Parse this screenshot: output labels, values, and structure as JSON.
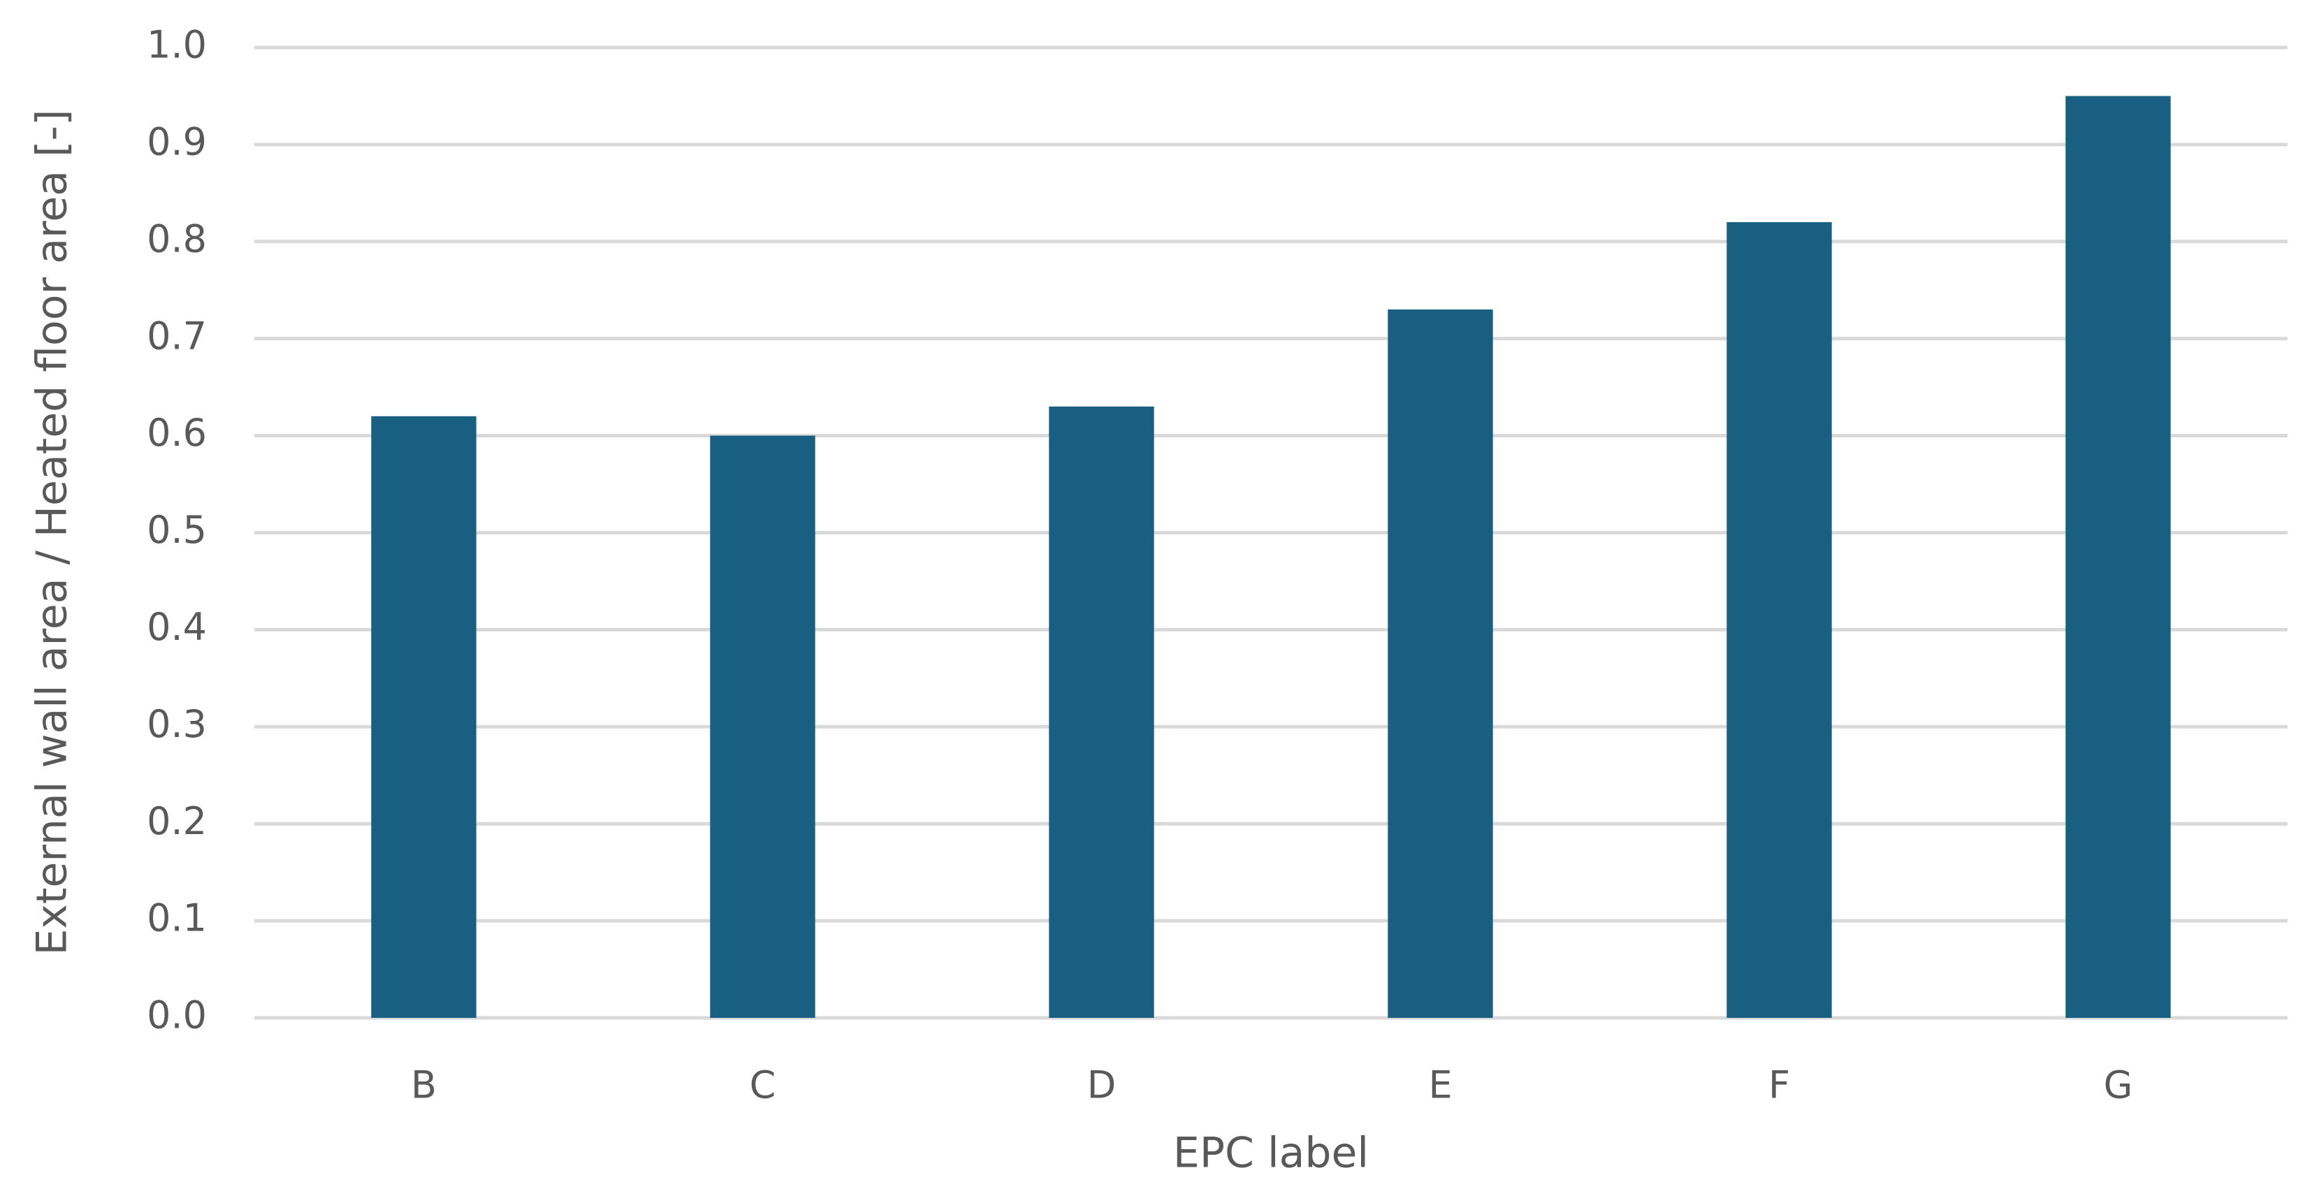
{
  "chart_data": {
    "type": "bar",
    "x_label": "EPC label",
    "y_label": "External wall area / Heated floor area [-]",
    "categories": [
      "B",
      "C",
      "D",
      "E",
      "F",
      "G"
    ],
    "values": [
      0.62,
      0.6,
      0.63,
      0.73,
      0.82,
      0.95
    ],
    "color": "#185f82",
    "ylim": [
      0,
      1
    ],
    "yticks": [
      {
        "value": 0,
        "label": "0.0"
      },
      0.1,
      0.2,
      0.3,
      0.4,
      0.5,
      0.6,
      0.7,
      0.8,
      0.9,
      {
        "value": 1,
        "label": "1.0"
      }
    ],
    "grid": true
  }
}
